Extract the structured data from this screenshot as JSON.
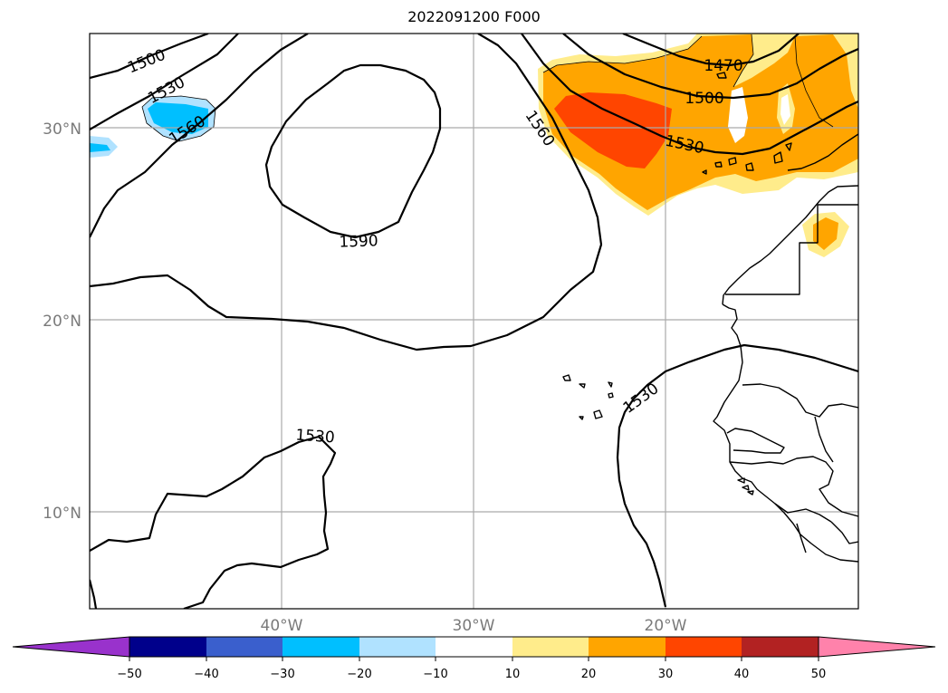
{
  "title": "2022091200 F000",
  "lat_labels": [
    "30°N",
    "20°N",
    "10°N"
  ],
  "lon_labels": [
    "40°W",
    "30°W",
    "20°W"
  ],
  "contour_labels": [
    "1500",
    "1530",
    "1560",
    "1590",
    "1560",
    "1470",
    "1500",
    "1530",
    "1530",
    "1530"
  ],
  "colorbar": {
    "ticks": [
      "−50",
      "−40",
      "−30",
      "−20",
      "−10",
      "10",
      "20",
      "30",
      "40",
      "50"
    ],
    "colors": [
      "#9932cc",
      "#00008b",
      "#3a5fcd",
      "#00bfff",
      "#b0e2ff",
      "#ffffff",
      "#ffec8b",
      "#ffa500",
      "#ff4500",
      "#b22222",
      "#ff82ab"
    ]
  },
  "map": {
    "lat_range": [
      5,
      35
    ],
    "lon_range": [
      -50,
      -10
    ],
    "contour_levels": [
      1470,
      1500,
      1530,
      1560,
      1590
    ],
    "shading_colors": {
      "light_blue": "#b0e2ff",
      "blue": "#00bfff",
      "yellow": "#ffec8b",
      "orange": "#ffa500",
      "red_orange": "#ff4500"
    }
  }
}
